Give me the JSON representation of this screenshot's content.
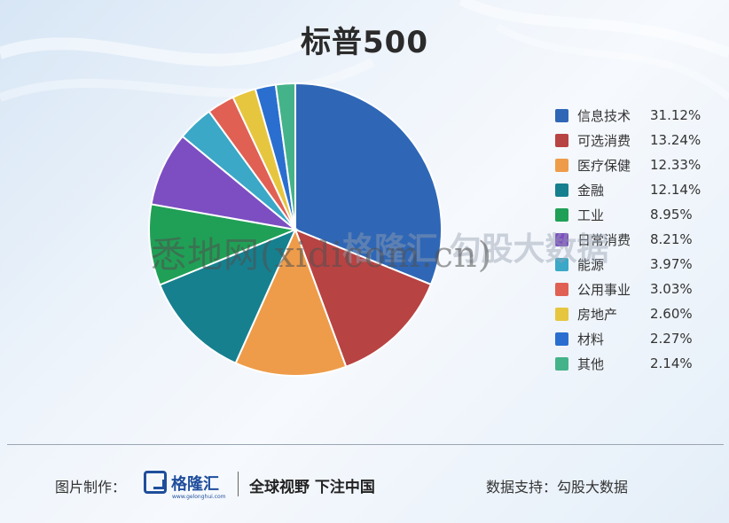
{
  "chart_data": {
    "type": "pie",
    "title": "标普500",
    "categories": [
      "信息技术",
      "可选消费",
      "医疗保健",
      "金融",
      "工业",
      "日常消费",
      "能源",
      "公用事业",
      "房地产",
      "材料",
      "其他"
    ],
    "values": [
      31.12,
      13.24,
      12.33,
      12.14,
      8.95,
      8.21,
      3.97,
      3.03,
      2.6,
      2.27,
      2.14
    ],
    "labels": [
      "31.12%",
      "13.24%",
      "12.33%",
      "12.14%",
      "8.95%",
      "8.21%",
      "3.97%",
      "3.03%",
      "2.60%",
      "2.27%",
      "2.14%"
    ],
    "colors": [
      "#2f67b6",
      "#b84343",
      "#ee9c4a",
      "#16808f",
      "#20a056",
      "#7c4ec2",
      "#3aa8c6",
      "#e06054",
      "#e7c63f",
      "#2a6fcf",
      "#45b38a"
    ],
    "start_angle": "12 o'clock",
    "direction": "clockwise",
    "legend_position": "right"
  },
  "watermark": "悉地网(xidicom.cn)",
  "watermark_faint": "格隆汇  勾股大数据",
  "footer": {
    "credit_label": "图片制作：",
    "logo_text": "格隆汇",
    "logo_url": "www.gelonghui.com",
    "slogan": "全球视野 下注中国",
    "source": "数据支持：勾股大数据"
  }
}
